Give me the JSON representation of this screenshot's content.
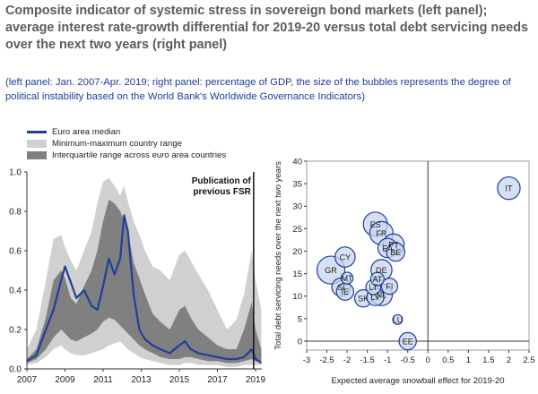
{
  "title": "Composite indicator of systemic stress in sovereign bond markets (left panel); average interest rate-growth differential for 2019-20 versus total debt servicing needs over the next two years (right panel)",
  "subtitle": "(left panel: Jan. 2007-Apr. 2019; right panel: percentage of GDP, the size of the bubbles represents the degree of political instability based on the World Bank's Worldwide Governance Indicators)",
  "colors": {
    "median": "#1f3f9c",
    "minmax": "#d0d0d0",
    "iqr": "#808080",
    "bubble_fill": "#c9d6ee",
    "bubble_stroke": "#1f3f9c"
  },
  "chart_data": [
    {
      "type": "area",
      "title": "",
      "xlabel": "",
      "ylabel": "",
      "xlim": [
        2007,
        2019.33
      ],
      "ylim": [
        0,
        1.0
      ],
      "x_ticks": [
        "2007",
        "2009",
        "2011",
        "2013",
        "2015",
        "2017",
        "2019"
      ],
      "y_ticks": [
        "0.0",
        "0.2",
        "0.4",
        "0.6",
        "0.8",
        "1.0"
      ],
      "grid": false,
      "legend": {
        "position": "top-left",
        "entries": [
          "Euro area median",
          "Minimum-maximum country range",
          "Interquartile range across euro area countries"
        ]
      },
      "annotation": {
        "text_lines": [
          "Publication of",
          "previous FSR"
        ],
        "x": 2018.9
      },
      "x": [
        2007.0,
        2007.5,
        2008.0,
        2008.4,
        2008.8,
        2009.0,
        2009.3,
        2009.6,
        2010.0,
        2010.4,
        2010.7,
        2011.0,
        2011.3,
        2011.6,
        2011.9,
        2012.1,
        2012.3,
        2012.6,
        2012.9,
        2013.2,
        2013.6,
        2014.0,
        2014.5,
        2015.0,
        2015.3,
        2015.6,
        2016.0,
        2016.5,
        2017.0,
        2017.5,
        2018.0,
        2018.4,
        2018.8,
        2019.0,
        2019.3
      ],
      "series": [
        {
          "name": "Minimum-maximum country range",
          "low": [
            0.02,
            0.03,
            0.06,
            0.1,
            0.12,
            0.1,
            0.08,
            0.07,
            0.07,
            0.08,
            0.09,
            0.1,
            0.12,
            0.13,
            0.14,
            0.12,
            0.1,
            0.08,
            0.06,
            0.05,
            0.04,
            0.03,
            0.02,
            0.02,
            0.03,
            0.03,
            0.02,
            0.02,
            0.02,
            0.01,
            0.01,
            0.02,
            0.02,
            0.02,
            0.02
          ],
          "high": [
            0.1,
            0.2,
            0.45,
            0.66,
            0.68,
            0.62,
            0.55,
            0.5,
            0.6,
            0.7,
            0.84,
            0.95,
            0.97,
            0.93,
            0.88,
            0.93,
            0.85,
            0.75,
            0.68,
            0.6,
            0.52,
            0.5,
            0.45,
            0.58,
            0.6,
            0.55,
            0.48,
            0.4,
            0.3,
            0.2,
            0.25,
            0.38,
            0.6,
            0.45,
            0.3
          ]
        },
        {
          "name": "Interquartile range across euro area countries",
          "low": [
            0.03,
            0.05,
            0.1,
            0.16,
            0.2,
            0.18,
            0.15,
            0.14,
            0.16,
            0.18,
            0.2,
            0.24,
            0.26,
            0.25,
            0.22,
            0.2,
            0.18,
            0.15,
            0.12,
            0.1,
            0.08,
            0.06,
            0.05,
            0.05,
            0.06,
            0.06,
            0.05,
            0.04,
            0.04,
            0.03,
            0.03,
            0.04,
            0.05,
            0.04,
            0.04
          ],
          "high": [
            0.05,
            0.1,
            0.26,
            0.45,
            0.5,
            0.46,
            0.36,
            0.33,
            0.42,
            0.5,
            0.6,
            0.75,
            0.86,
            0.84,
            0.8,
            0.75,
            0.7,
            0.54,
            0.46,
            0.38,
            0.28,
            0.24,
            0.2,
            0.3,
            0.32,
            0.26,
            0.2,
            0.16,
            0.12,
            0.1,
            0.1,
            0.2,
            0.34,
            0.2,
            0.1
          ]
        },
        {
          "name": "Euro area median",
          "values": [
            0.04,
            0.07,
            0.2,
            0.3,
            0.45,
            0.52,
            0.44,
            0.36,
            0.4,
            0.32,
            0.3,
            0.42,
            0.56,
            0.48,
            0.56,
            0.78,
            0.7,
            0.38,
            0.2,
            0.15,
            0.12,
            0.1,
            0.08,
            0.12,
            0.14,
            0.1,
            0.08,
            0.07,
            0.06,
            0.05,
            0.05,
            0.06,
            0.1,
            0.05,
            0.03
          ]
        }
      ]
    },
    {
      "type": "scatter",
      "title": "",
      "xlabel": "Expected average snowball effect for 2019-20",
      "ylabel": "Total debt servicing needs over the next two years",
      "xlim": [
        -3,
        2.5
      ],
      "ylim": [
        -2,
        40
      ],
      "x_ticks": [
        "-3",
        "-2.5",
        "-2",
        "-1.5",
        "-1",
        "-0.5",
        "0",
        "0.5",
        "1",
        "1.5",
        "2",
        "2.5"
      ],
      "y_ticks": [
        "0",
        "5",
        "10",
        "15",
        "20",
        "25",
        "30",
        "35",
        "40"
      ],
      "grid": false,
      "bubble_size_meaning": "degree of political instability",
      "points": [
        {
          "label": "IT",
          "x": 2.0,
          "y": 34.0,
          "size": 0.6
        },
        {
          "label": "ES",
          "x": -1.3,
          "y": 26.0,
          "size": 0.7
        },
        {
          "label": "FR",
          "x": -1.15,
          "y": 24.0,
          "size": 0.65
        },
        {
          "label": "PT",
          "x": -0.85,
          "y": 21.5,
          "size": 0.5
        },
        {
          "label": "EA",
          "x": -1.0,
          "y": 20.7,
          "size": 0.4
        },
        {
          "label": "BE",
          "x": -0.8,
          "y": 19.8,
          "size": 0.35
        },
        {
          "label": "CY",
          "x": -2.05,
          "y": 18.7,
          "size": 0.45
        },
        {
          "label": "GR",
          "x": -2.4,
          "y": 15.8,
          "size": 1.0
        },
        {
          "label": "DE",
          "x": -1.15,
          "y": 15.8,
          "size": 0.5
        },
        {
          "label": "MT",
          "x": -2.0,
          "y": 14.0,
          "size": 0.1
        },
        {
          "label": "AT",
          "x": -1.25,
          "y": 13.8,
          "size": 0.15
        },
        {
          "label": "LT",
          "x": -1.35,
          "y": 12.0,
          "size": 0.2
        },
        {
          "label": "FI",
          "x": -0.95,
          "y": 12.2,
          "size": 0.25
        },
        {
          "label": "SI",
          "x": -2.15,
          "y": 12.0,
          "size": 0.35
        },
        {
          "label": "IE",
          "x": -2.05,
          "y": 11.0,
          "size": 0.3
        },
        {
          "label": "NL",
          "x": -1.15,
          "y": 10.3,
          "size": 0.55
        },
        {
          "label": "SK",
          "x": -1.6,
          "y": 9.5,
          "size": 0.3
        },
        {
          "label": "LV",
          "x": -1.3,
          "y": 9.8,
          "size": 0.3
        },
        {
          "label": "LU",
          "x": -0.75,
          "y": 4.8,
          "size": 0.05
        },
        {
          "label": "EE",
          "x": -0.5,
          "y": 0.0,
          "size": 0.3
        }
      ]
    }
  ]
}
